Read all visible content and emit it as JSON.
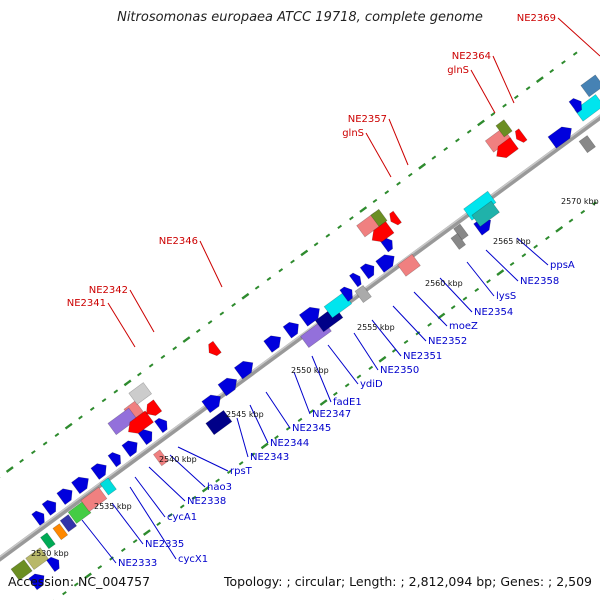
{
  "title": "Nitrosomonas europaea ATCC 19718, complete genome",
  "footer": {
    "accession_label": "Accession:",
    "accession": "NC_004757",
    "topology_label": "Topology:",
    "topology": "circular",
    "length_label": "Length:",
    "length": "2,812,094 bp",
    "genes_label": "Genes:",
    "genes": "2,509"
  },
  "colors": {
    "backbone": "#999999",
    "tick": "#2e8b2e",
    "reverse_label": "#cc0000",
    "forward_label": "#0000cc",
    "leader_line_forward": "#0000cc",
    "leader_line_reverse": "#cc0000"
  },
  "scale_ticks": [
    "2530 kbp",
    "2535 kbp",
    "2540 kbp",
    "2545 kbp",
    "2550 kbp",
    "2555 kbp",
    "2560 kbp",
    "2565 kbp",
    "2570 kbp"
  ],
  "reverse_gene_labels": [
    {
      "id": "ne2341",
      "text": "NE2341"
    },
    {
      "id": "ne2342",
      "text": "NE2342"
    },
    {
      "id": "ne2346",
      "text": "NE2346"
    },
    {
      "id": "ne2357",
      "text": "NE2357"
    },
    {
      "id": "glns-1",
      "text": "glnS"
    },
    {
      "id": "ne2364",
      "text": "NE2364"
    },
    {
      "id": "glns-2",
      "text": "glnS"
    },
    {
      "id": "ne2369",
      "text": "NE2369"
    }
  ],
  "forward_gene_labels": [
    {
      "id": "ne2333",
      "text": "NE2333"
    },
    {
      "id": "ne2335",
      "text": "NE2335"
    },
    {
      "id": "cycx1",
      "text": "cycX1"
    },
    {
      "id": "cyca1",
      "text": "cycA1"
    },
    {
      "id": "ne2338",
      "text": "NE2338"
    },
    {
      "id": "hao3",
      "text": "hao3"
    },
    {
      "id": "rpst",
      "text": "rpsT"
    },
    {
      "id": "ne2343",
      "text": "NE2343"
    },
    {
      "id": "ne2344",
      "text": "NE2344"
    },
    {
      "id": "ne2345",
      "text": "NE2345"
    },
    {
      "id": "ne2347",
      "text": "NE2347"
    },
    {
      "id": "fade1",
      "text": "fadE1"
    },
    {
      "id": "ydid",
      "text": "ydiD"
    },
    {
      "id": "ne2350",
      "text": "NE2350"
    },
    {
      "id": "ne2351",
      "text": "NE2351"
    },
    {
      "id": "ne2352",
      "text": "NE2352"
    },
    {
      "id": "moez",
      "text": "moeZ"
    },
    {
      "id": "ne2354",
      "text": "NE2354"
    },
    {
      "id": "lyss",
      "text": "lysS"
    },
    {
      "id": "ne2358",
      "text": "NE2358"
    },
    {
      "id": "ppsa",
      "text": "ppsA"
    }
  ]
}
